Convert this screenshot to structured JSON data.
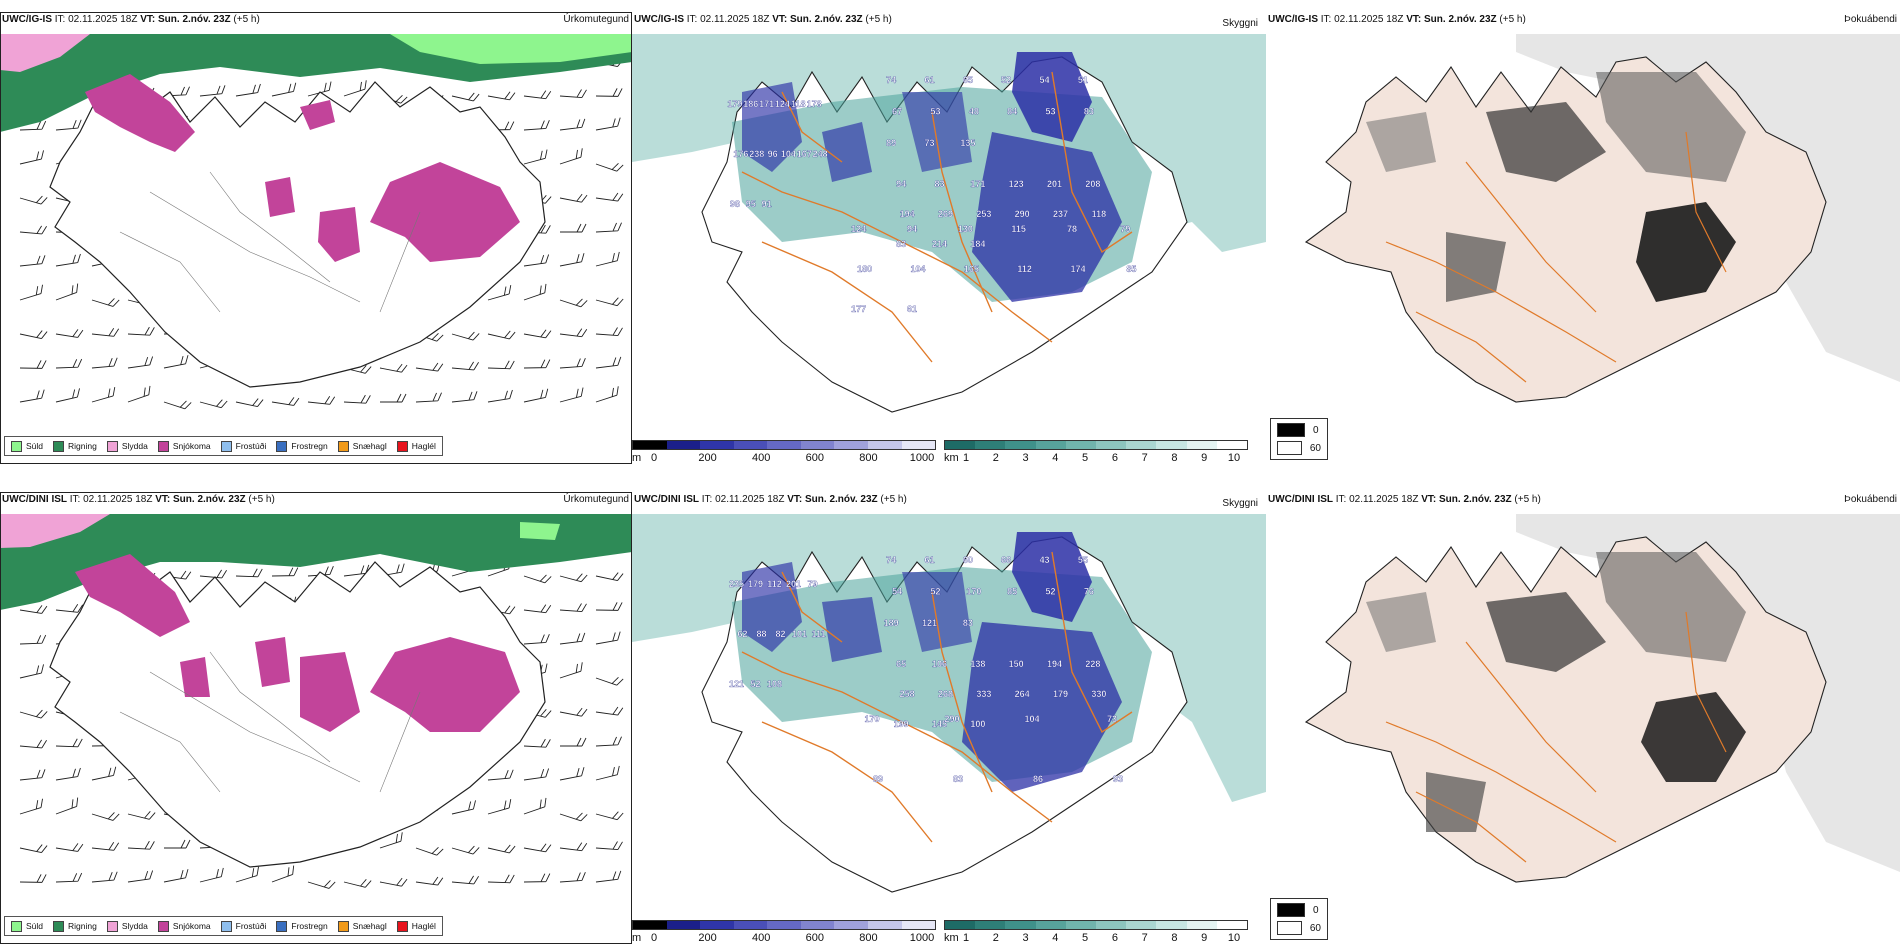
{
  "colors": {
    "suld": "#8ef58e",
    "rigning": "#2e8b57",
    "slydda": "#f0a3d6",
    "snjokoma": "#c2449a",
    "frostudi": "#8fbfee",
    "frostregn": "#3a6fc0",
    "snaehagl": "#f09a1a",
    "haglel": "#e8141e",
    "cloud": "#2b2fa6",
    "visibility": "#4aa39a",
    "road": "#e07a2a",
    "land": "#f3e4dc"
  },
  "icon_names": [
    "wind-barb-icon",
    "legend-swatch-icon"
  ],
  "rows": [
    {
      "model": "UWC/IG-IS",
      "it_label": "IT:",
      "it_value": "02.11.2025 18Z",
      "vt_label": "VT:",
      "vt_value": "Sun. 2.nóv. 23Z",
      "lead": "(+5 h)",
      "heights": [
        [
          "179",
          "186",
          "171",
          "124",
          "118",
          "178",
          "176",
          "238",
          "96",
          "104",
          "167",
          "248",
          "98",
          "95",
          "91"
        ],
        [
          "74",
          "61",
          "65",
          "52",
          "54",
          "51",
          "67",
          "53",
          "48",
          "84",
          "53",
          "83",
          "89",
          "73",
          "135"
        ],
        [
          "94",
          "83",
          "171",
          "123",
          "201",
          "208",
          "194",
          "269",
          "253",
          "290",
          "237",
          "118",
          "83",
          "214",
          "184"
        ],
        [
          "124",
          "94",
          "130",
          "115",
          "78",
          "79",
          "180",
          "104",
          "165",
          "112",
          "174",
          "85",
          "177",
          "61"
        ]
      ]
    },
    {
      "model": "UWC/DINI ISL",
      "it_label": "IT:",
      "it_value": "02.11.2025 18Z",
      "vt_label": "VT:",
      "vt_value": "Sun. 2.nóv. 23Z",
      "lead": "(+5 h)",
      "heights": [
        [
          "235",
          "179",
          "112",
          "201",
          "79",
          "62",
          "88",
          "82",
          "101",
          "111",
          "121",
          "52",
          "108"
        ],
        [
          "74",
          "61",
          "60",
          "66",
          "43",
          "55",
          "54",
          "52",
          "170",
          "85",
          "52",
          "76",
          "189",
          "121",
          "83"
        ],
        [
          "65",
          "106",
          "138",
          "150",
          "194",
          "228",
          "258",
          "268",
          "333",
          "264",
          "179",
          "330",
          "199",
          "145",
          "100"
        ],
        [
          "170",
          "290",
          "104",
          "73",
          "89",
          "83",
          "86",
          "93"
        ]
      ]
    }
  ],
  "panel_types": {
    "precip": "Úrkomutegund",
    "cloud": "Skyggni",
    "shadow": "Þokuábendi"
  },
  "precip_legend": [
    "Súld",
    "Rigning",
    "Slydda",
    "Snjókoma",
    "Frostúði",
    "Frostregn",
    "Snæhagl",
    "Haglél"
  ],
  "cloud_bar": {
    "unit": "m",
    "ticks": [
      "0",
      "200",
      "400",
      "600",
      "800",
      "1000"
    ],
    "colors": [
      "#000000",
      "#1b1f8a",
      "#2f35a8",
      "#4a4fb8",
      "#6569c4",
      "#8184cf",
      "#a0a2dc",
      "#c4c6ea",
      "#e6e7f6"
    ]
  },
  "vis_bar": {
    "unit": "km",
    "ticks": [
      "1",
      "2",
      "3",
      "4",
      "5",
      "6",
      "7",
      "8",
      "9",
      "10"
    ],
    "colors": [
      "#1e6b66",
      "#2e7f78",
      "#3f918a",
      "#57a39c",
      "#71b4ad",
      "#8dc5bf",
      "#aad6d1",
      "#c7e6e2",
      "#e4f3f1",
      "#ffffff"
    ]
  },
  "shadow_legend": [
    "0",
    "60"
  ]
}
